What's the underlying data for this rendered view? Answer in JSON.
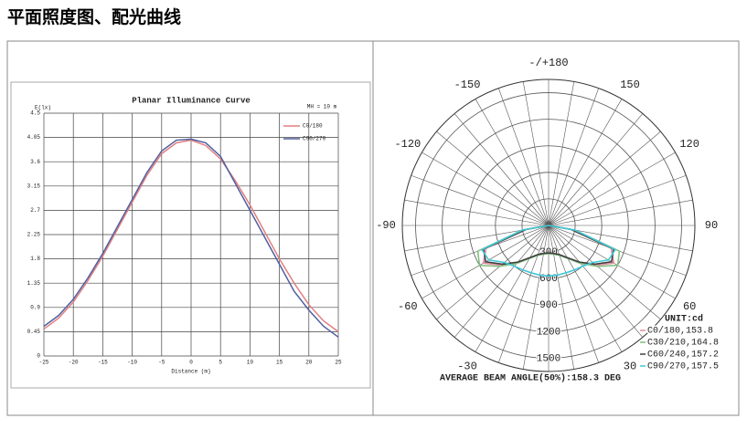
{
  "heading": "平面照度图、配光曲线",
  "chart_data": [
    {
      "type": "line",
      "title": "Planar Illuminance Curve",
      "annotation": "MH = 10 m",
      "y_label": "E(lx)",
      "x_label": "Distance (m)",
      "x": [
        -25,
        -22.5,
        -20,
        -17.5,
        -15,
        -12.5,
        -10,
        -7.5,
        -5,
        -2.5,
        0,
        2.5,
        5,
        7.5,
        10,
        12.5,
        15,
        17.5,
        20,
        22.5,
        25
      ],
      "series": [
        {
          "name": "C0/180",
          "color": "#e08080",
          "values": [
            0.5,
            0.7,
            1.0,
            1.4,
            1.85,
            2.35,
            2.85,
            3.35,
            3.75,
            3.95,
            4.0,
            3.9,
            3.65,
            3.25,
            2.8,
            2.3,
            1.8,
            1.35,
            0.95,
            0.65,
            0.45
          ]
        },
        {
          "name": "C90/270",
          "color": "#5060a0",
          "values": [
            0.55,
            0.75,
            1.05,
            1.45,
            1.9,
            2.4,
            2.9,
            3.4,
            3.8,
            4.0,
            4.02,
            3.95,
            3.7,
            3.2,
            2.7,
            2.2,
            1.7,
            1.2,
            0.85,
            0.55,
            0.35
          ]
        }
      ],
      "xlim": [
        -25,
        25
      ],
      "xticks": [
        -25,
        -20,
        -15,
        -10,
        -5,
        0,
        5,
        10,
        15,
        20,
        25
      ],
      "ylim": [
        0,
        4.5
      ],
      "yticks": [
        0,
        0.45,
        0.9,
        1.35,
        1.8,
        2.25,
        2.7,
        3.15,
        3.6,
        4.05,
        4.5
      ],
      "grid": true
    },
    {
      "type": "polar",
      "unit": "UNIT:cd",
      "footer": "AVERAGE BEAM ANGLE(50%):158.3 DEG",
      "angles": [
        -90,
        -80,
        -70,
        -60,
        -50,
        -40,
        -30,
        -20,
        -10,
        0,
        10,
        20,
        30,
        40,
        50,
        60,
        70,
        80,
        90
      ],
      "series": [
        {
          "name": "C0/180,153.8",
          "color": "#e090a0",
          "values": [
            0,
            250,
            750,
            850,
            700,
            550,
            420,
            350,
            320,
            310,
            320,
            350,
            420,
            550,
            700,
            850,
            750,
            250,
            0
          ]
        },
        {
          "name": "C30/210,164.8",
          "color": "#80c080",
          "values": [
            0,
            300,
            850,
            900,
            720,
            560,
            430,
            360,
            330,
            320,
            330,
            360,
            430,
            560,
            720,
            900,
            850,
            300,
            0
          ]
        },
        {
          "name": "C60/240,157.2",
          "color": "#404040",
          "values": [
            0,
            260,
            780,
            820,
            680,
            540,
            420,
            350,
            320,
            310,
            320,
            350,
            420,
            540,
            680,
            820,
            780,
            260,
            0
          ]
        },
        {
          "name": "C90/270,157.5",
          "color": "#40c8d8",
          "values": [
            0,
            300,
            800,
            780,
            650,
            600,
            580,
            570,
            570,
            570,
            570,
            570,
            580,
            600,
            650,
            780,
            800,
            300,
            0
          ]
        }
      ],
      "rlim": [
        0,
        1650
      ],
      "rticks": [
        0,
        300,
        600,
        900,
        1200,
        1500
      ],
      "angle_ticks": [
        {
          "value": 180,
          "label": "-/+180"
        },
        150,
        120,
        90,
        60,
        30,
        -30,
        -60,
        -90,
        -120,
        -150
      ]
    }
  ]
}
